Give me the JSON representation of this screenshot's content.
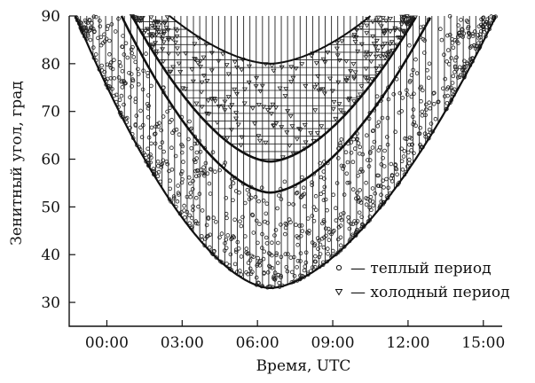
{
  "chart_data": {
    "type": "scatter",
    "xlabel": "Время, UTC",
    "ylabel": "Зенитный угол, град",
    "xlim": [
      "-01:30",
      "15:45"
    ],
    "ylim": [
      25,
      90
    ],
    "x_ticks": [
      "00:00",
      "03:00",
      "06:00",
      "09:00",
      "12:00",
      "15:00"
    ],
    "y_ticks": [
      30,
      40,
      50,
      60,
      70,
      80,
      90
    ],
    "legend_position": "bottom-right",
    "legend": [
      {
        "marker": "circle",
        "label": "— теплый период"
      },
      {
        "marker": "triangle-down",
        "label": "— холодный период"
      }
    ],
    "envelopes": [
      {
        "name": "outer",
        "min_x": "06:30",
        "min_y": 33,
        "left_edge_at_90": "-01:15",
        "right_edge_at_90": "15:30"
      },
      {
        "name": "inner",
        "min_x": "06:30",
        "min_y": 53,
        "left_edge_at_90": "00:35",
        "right_edge_at_90": "12:55"
      },
      {
        "name": "inner2",
        "min_x": "06:30",
        "min_y": 59.5,
        "left_edge_at_90": "01:00",
        "right_edge_at_90": "12:20"
      },
      {
        "name": "top",
        "min_x": "06:30",
        "min_y": 80,
        "left_edge_at_90": "02:30",
        "right_edge_at_90": "10:30"
      }
    ],
    "series": [
      {
        "name": "— теплый период",
        "marker": "circle",
        "region": "between outer envelope and inner envelope",
        "color": "#222222"
      },
      {
        "name": "— холодный период",
        "marker": "triangle-down",
        "region": "between inner2 envelope and top envelope",
        "color": "#222222"
      }
    ]
  }
}
